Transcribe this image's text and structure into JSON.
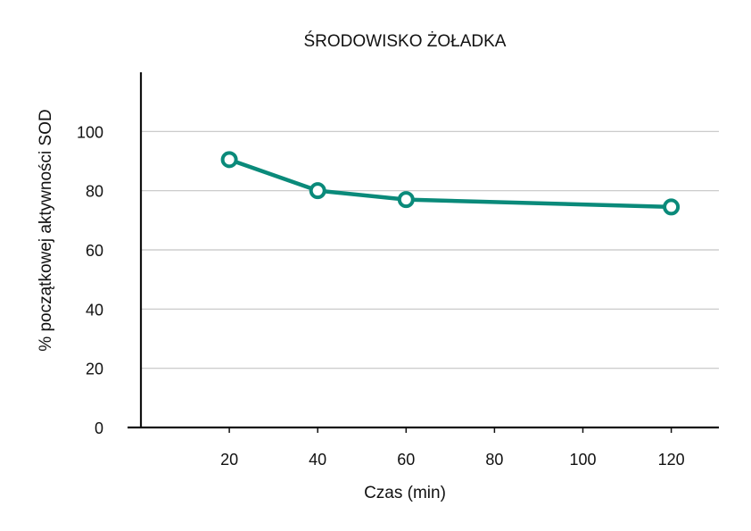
{
  "chart_data": {
    "type": "line",
    "title": "ŚRODOWISKO ŻOŁADKA",
    "xlabel": "Czas (min)",
    "ylabel": "% początkowej aktywności SOD",
    "x_ticks": [
      "20",
      "40",
      "60",
      "80",
      "100",
      "120"
    ],
    "y_ticks": [
      "0",
      "20",
      "40",
      "60",
      "80",
      "100"
    ],
    "xlim": [
      0,
      130
    ],
    "ylim": [
      0,
      120
    ],
    "grid": true,
    "series": [
      {
        "color": "#0a8a7a",
        "x": [
          20,
          40,
          60,
          120
        ],
        "y": [
          90.5,
          80,
          77,
          74.5
        ]
      }
    ]
  }
}
